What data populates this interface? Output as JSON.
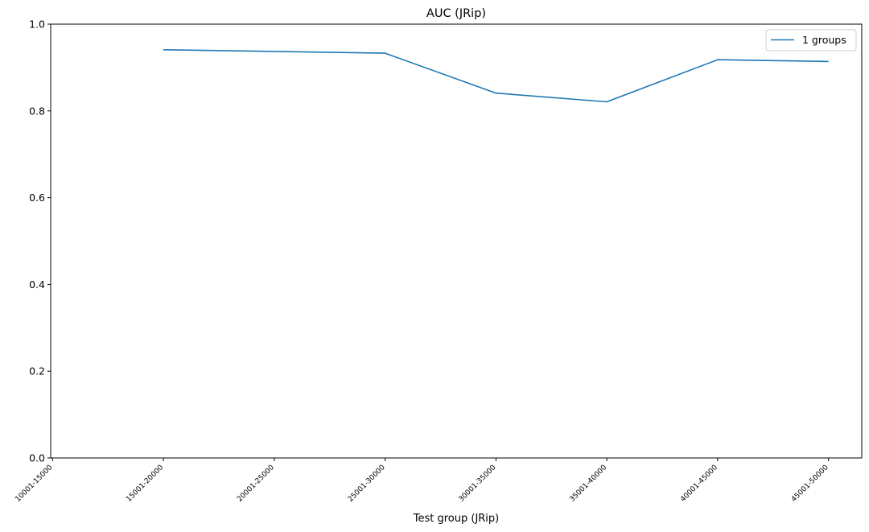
{
  "chart_data": {
    "type": "line",
    "title": "AUC (JRip)",
    "xlabel": "Test group (JRip)",
    "ylabel": "",
    "categories": [
      "10001-15000",
      "15001-20000",
      "20001-25000",
      "25001-30000",
      "30001-35000",
      "35001-40000",
      "40001-45000",
      "45001-50000"
    ],
    "x_range": [
      -0.017,
      7.3
    ],
    "ylim": [
      0.0,
      1.0
    ],
    "yticks": [
      "0.0",
      "0.2",
      "0.4",
      "0.6",
      "0.8",
      "1.0"
    ],
    "series": [
      {
        "name": "1 groups",
        "color": "#1f77b4",
        "x": [
          "15001-20000",
          "25001-30000",
          "30001-35000",
          "35001-40000",
          "40001-45000",
          "45001-50000"
        ],
        "values": [
          0.941,
          0.933,
          0.841,
          0.821,
          0.918,
          0.914
        ]
      }
    ],
    "grid": false,
    "legend_position": "top-right"
  }
}
